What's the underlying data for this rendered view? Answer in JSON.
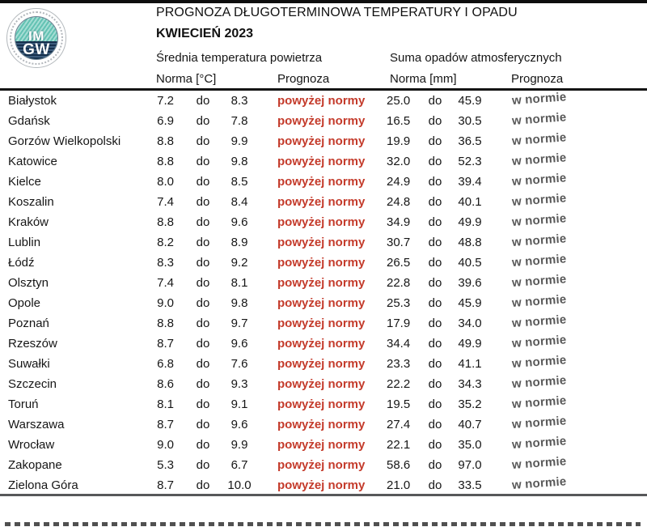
{
  "header": {
    "title": "PROGNOZA DŁUGOTERMINOWA TEMPERATURY I OPADU",
    "subtitle": "KWIECIEŃ 2023",
    "logo": {
      "line1": "IM",
      "line2": "GW"
    }
  },
  "columns": {
    "temp_group": "Średnia temperatura powietrza",
    "precip_group": "Suma opadów atmosferycznych",
    "temp_norma": "Norma [°C]",
    "temp_prognoza": "Prognoza",
    "precip_norma": "Norma [mm]",
    "precip_prognoza": "Prognoza"
  },
  "colors": {
    "above_norm": "#c43b2b",
    "in_norm": "#595959"
  },
  "rows": [
    {
      "city": "Białystok",
      "t_low": "7.2",
      "t_sep": "do",
      "t_high": "8.3",
      "t_prog": "powyżej normy",
      "p_low": "25.0",
      "p_sep": "do",
      "p_high": "45.9",
      "p_prog": "w normie"
    },
    {
      "city": "Gdańsk",
      "t_low": "6.9",
      "t_sep": "do",
      "t_high": "7.8",
      "t_prog": "powyżej normy",
      "p_low": "16.5",
      "p_sep": "do",
      "p_high": "30.5",
      "p_prog": "w normie"
    },
    {
      "city": "Gorzów Wielkopolski",
      "t_low": "8.8",
      "t_sep": "do",
      "t_high": "9.9",
      "t_prog": "powyżej normy",
      "p_low": "19.9",
      "p_sep": "do",
      "p_high": "36.5",
      "p_prog": "w normie"
    },
    {
      "city": "Katowice",
      "t_low": "8.8",
      "t_sep": "do",
      "t_high": "9.8",
      "t_prog": "powyżej normy",
      "p_low": "32.0",
      "p_sep": "do",
      "p_high": "52.3",
      "p_prog": "w normie"
    },
    {
      "city": "Kielce",
      "t_low": "8.0",
      "t_sep": "do",
      "t_high": "8.5",
      "t_prog": "powyżej normy",
      "p_low": "24.9",
      "p_sep": "do",
      "p_high": "39.4",
      "p_prog": "w normie"
    },
    {
      "city": "Koszalin",
      "t_low": "7.4",
      "t_sep": "do",
      "t_high": "8.4",
      "t_prog": "powyżej normy",
      "p_low": "24.8",
      "p_sep": "do",
      "p_high": "40.1",
      "p_prog": "w normie"
    },
    {
      "city": "Kraków",
      "t_low": "8.8",
      "t_sep": "do",
      "t_high": "9.6",
      "t_prog": "powyżej normy",
      "p_low": "34.9",
      "p_sep": "do",
      "p_high": "49.9",
      "p_prog": "w normie"
    },
    {
      "city": "Lublin",
      "t_low": "8.2",
      "t_sep": "do",
      "t_high": "8.9",
      "t_prog": "powyżej normy",
      "p_low": "30.7",
      "p_sep": "do",
      "p_high": "48.8",
      "p_prog": "w normie"
    },
    {
      "city": "Łódź",
      "t_low": "8.3",
      "t_sep": "do",
      "t_high": "9.2",
      "t_prog": "powyżej normy",
      "p_low": "26.5",
      "p_sep": "do",
      "p_high": "40.5",
      "p_prog": "w normie"
    },
    {
      "city": "Olsztyn",
      "t_low": "7.4",
      "t_sep": "do",
      "t_high": "8.1",
      "t_prog": "powyżej normy",
      "p_low": "22.8",
      "p_sep": "do",
      "p_high": "39.6",
      "p_prog": "w normie"
    },
    {
      "city": "Opole",
      "t_low": "9.0",
      "t_sep": "do",
      "t_high": "9.8",
      "t_prog": "powyżej normy",
      "p_low": "25.3",
      "p_sep": "do",
      "p_high": "45.9",
      "p_prog": "w normie"
    },
    {
      "city": "Poznań",
      "t_low": "8.8",
      "t_sep": "do",
      "t_high": "9.7",
      "t_prog": "powyżej normy",
      "p_low": "17.9",
      "p_sep": "do",
      "p_high": "34.0",
      "p_prog": "w normie"
    },
    {
      "city": "Rzeszów",
      "t_low": "8.7",
      "t_sep": "do",
      "t_high": "9.6",
      "t_prog": "powyżej normy",
      "p_low": "34.4",
      "p_sep": "do",
      "p_high": "49.9",
      "p_prog": "w normie"
    },
    {
      "city": "Suwałki",
      "t_low": "6.8",
      "t_sep": "do",
      "t_high": "7.6",
      "t_prog": "powyżej normy",
      "p_low": "23.3",
      "p_sep": "do",
      "p_high": "41.1",
      "p_prog": "w normie"
    },
    {
      "city": "Szczecin",
      "t_low": "8.6",
      "t_sep": "do",
      "t_high": "9.3",
      "t_prog": "powyżej normy",
      "p_low": "22.2",
      "p_sep": "do",
      "p_high": "34.3",
      "p_prog": "w normie"
    },
    {
      "city": "Toruń",
      "t_low": "8.1",
      "t_sep": "do",
      "t_high": "9.1",
      "t_prog": "powyżej normy",
      "p_low": "19.5",
      "p_sep": "do",
      "p_high": "35.2",
      "p_prog": "w normie"
    },
    {
      "city": "Warszawa",
      "t_low": "8.7",
      "t_sep": "do",
      "t_high": "9.6",
      "t_prog": "powyżej normy",
      "p_low": "27.4",
      "p_sep": "do",
      "p_high": "40.7",
      "p_prog": "w normie"
    },
    {
      "city": "Wrocław",
      "t_low": "9.0",
      "t_sep": "do",
      "t_high": "9.9",
      "t_prog": "powyżej normy",
      "p_low": "22.1",
      "p_sep": "do",
      "p_high": "35.0",
      "p_prog": "w normie"
    },
    {
      "city": "Zakopane",
      "t_low": "5.3",
      "t_sep": "do",
      "t_high": "6.7",
      "t_prog": "powyżej normy",
      "p_low": "58.6",
      "p_sep": "do",
      "p_high": "97.0",
      "p_prog": "w normie"
    },
    {
      "city": "Zielona Góra",
      "t_low": "8.7",
      "t_sep": "do",
      "t_high": "10.0",
      "t_prog": "powyżej normy",
      "p_low": "21.0",
      "p_sep": "do",
      "p_high": "33.5",
      "p_prog": "w normie"
    }
  ]
}
